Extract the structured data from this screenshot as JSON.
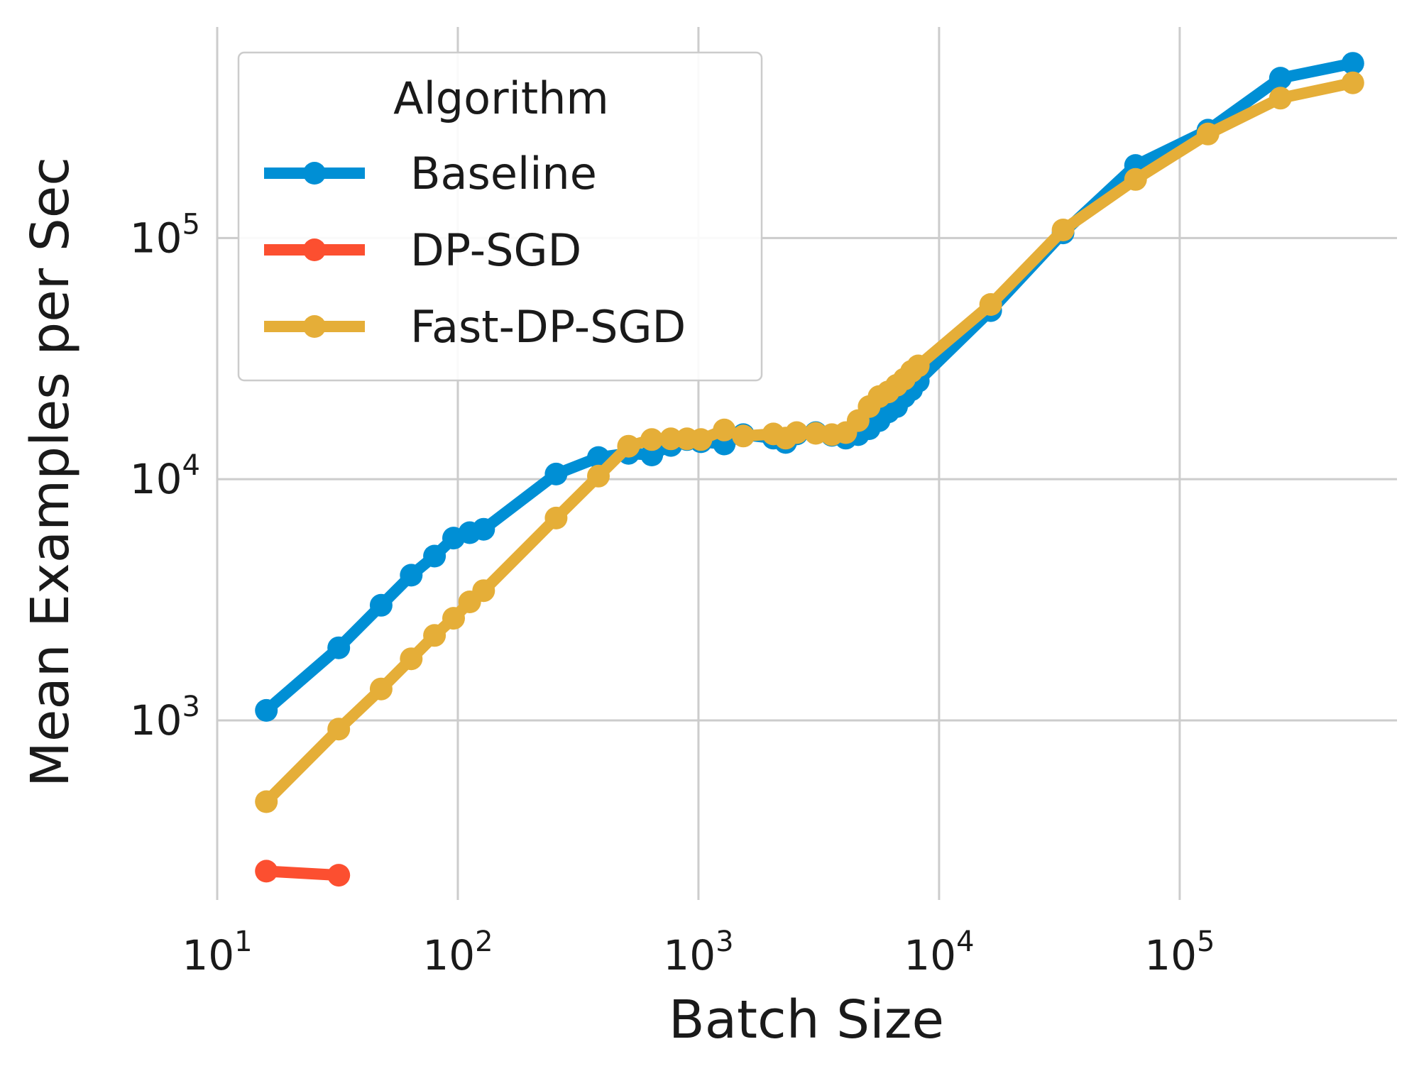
{
  "chart_data": {
    "type": "line",
    "xlabel": "Batch Size",
    "ylabel": "Mean Examples per Sec",
    "x_scale": "log",
    "y_scale": "log",
    "xlim": [
      10,
      800000
    ],
    "ylim": [
      180,
      750000
    ],
    "x_ticks": [
      {
        "value": 10,
        "base": "10",
        "exp": "1"
      },
      {
        "value": 100,
        "base": "10",
        "exp": "2"
      },
      {
        "value": 1000,
        "base": "10",
        "exp": "3"
      },
      {
        "value": 10000,
        "base": "10",
        "exp": "4"
      },
      {
        "value": 100000,
        "base": "10",
        "exp": "5"
      }
    ],
    "y_ticks": [
      {
        "value": 1000,
        "base": "10",
        "exp": "3"
      },
      {
        "value": 10000,
        "base": "10",
        "exp": "4"
      },
      {
        "value": 100000,
        "base": "10",
        "exp": "5"
      }
    ],
    "grid": true,
    "legend": {
      "title": "Algorithm",
      "position": "top-left"
    },
    "series": [
      {
        "name": "Baseline",
        "color": "#008fd5",
        "points": [
          [
            16,
            1100
          ],
          [
            32,
            2000
          ],
          [
            48,
            3000
          ],
          [
            64,
            4000
          ],
          [
            80,
            4800
          ],
          [
            96,
            5700
          ],
          [
            112,
            6000
          ],
          [
            128,
            6200
          ],
          [
            256,
            10500
          ],
          [
            384,
            12300
          ],
          [
            512,
            12800
          ],
          [
            640,
            12600
          ],
          [
            768,
            13800
          ],
          [
            896,
            14600
          ],
          [
            1024,
            14300
          ],
          [
            1280,
            14000
          ],
          [
            1536,
            15300
          ],
          [
            2048,
            14800
          ],
          [
            2304,
            14200
          ],
          [
            2560,
            15400
          ],
          [
            3072,
            15600
          ],
          [
            3584,
            15200
          ],
          [
            4096,
            14800
          ],
          [
            4608,
            15300
          ],
          [
            5120,
            16200
          ],
          [
            5632,
            17500
          ],
          [
            6144,
            19000
          ],
          [
            6656,
            20000
          ],
          [
            7168,
            22000
          ],
          [
            7680,
            23500
          ],
          [
            8192,
            25500
          ],
          [
            16384,
            50000
          ],
          [
            32768,
            105000
          ],
          [
            65536,
            200000
          ],
          [
            131072,
            280000
          ],
          [
            262144,
            460000
          ],
          [
            524288,
            530000
          ]
        ]
      },
      {
        "name": "DP-SGD",
        "color": "#fc4f30",
        "points": [
          [
            16,
            237
          ],
          [
            32,
            228
          ]
        ]
      },
      {
        "name": "Fast-DP-SGD",
        "color": "#e5ae38",
        "points": [
          [
            16,
            460
          ],
          [
            32,
            920
          ],
          [
            48,
            1350
          ],
          [
            64,
            1800
          ],
          [
            80,
            2250
          ],
          [
            96,
            2650
          ],
          [
            112,
            3100
          ],
          [
            128,
            3450
          ],
          [
            256,
            6900
          ],
          [
            384,
            10300
          ],
          [
            512,
            13700
          ],
          [
            640,
            14600
          ],
          [
            768,
            14700
          ],
          [
            896,
            14700
          ],
          [
            1024,
            14600
          ],
          [
            1280,
            16000
          ],
          [
            1536,
            15100
          ],
          [
            2048,
            15400
          ],
          [
            2304,
            14800
          ],
          [
            2560,
            15600
          ],
          [
            3072,
            15500
          ],
          [
            3584,
            15300
          ],
          [
            4096,
            15600
          ],
          [
            4608,
            17500
          ],
          [
            5120,
            20000
          ],
          [
            5632,
            22000
          ],
          [
            6144,
            23000
          ],
          [
            6656,
            24500
          ],
          [
            7168,
            26000
          ],
          [
            7680,
            28000
          ],
          [
            8192,
            29500
          ],
          [
            16384,
            53000
          ],
          [
            32768,
            108000
          ],
          [
            65536,
            175000
          ],
          [
            131072,
            270000
          ],
          [
            262144,
            380000
          ],
          [
            524288,
            440000
          ]
        ]
      }
    ]
  }
}
